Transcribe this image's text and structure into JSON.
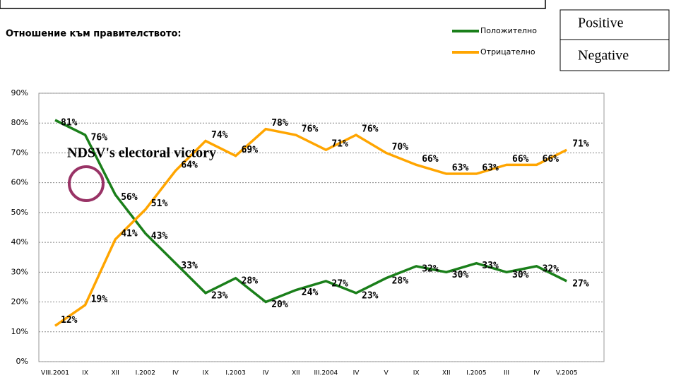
{
  "chart_data": {
    "type": "line",
    "title": "Отношение към правителството:",
    "annotation": "NDSV's electoral victory",
    "boxes": [
      "Positive",
      "Negative"
    ],
    "categories": [
      "VIII.2001",
      "IX",
      "XII",
      "I.2002",
      "IV",
      "IX",
      "I.2003",
      "IV",
      "XII",
      "III.2004",
      "IV",
      "V",
      "IX",
      "XII",
      "I.2005",
      "III",
      "IV",
      "V.2005"
    ],
    "series": [
      {
        "name": "Положително",
        "color": "#1a7f1a",
        "values": [
          81,
          76,
          56,
          43,
          33,
          23,
          28,
          20,
          24,
          27,
          23,
          28,
          32,
          30,
          33,
          30,
          32,
          27
        ],
        "value_labels": [
          "81%",
          "76%",
          "56%",
          "43%",
          "33%",
          "23%",
          "28%",
          "20%",
          "24%",
          "27%",
          "23%",
          "28%",
          "32%",
          "30%",
          "33%",
          "30%",
          "32%",
          "27%"
        ]
      },
      {
        "name": "Отрицателно",
        "color": "#ffa500",
        "values": [
          12,
          19,
          41,
          51,
          64,
          74,
          69,
          78,
          76,
          71,
          76,
          70,
          66,
          63,
          63,
          66,
          66,
          71
        ],
        "value_labels": [
          "12%",
          "19%",
          "41%",
          "51%",
          "64%",
          "74%",
          "69%",
          "78%",
          "76%",
          "71%",
          "76%",
          "70%",
          "66%",
          "63%",
          "63%",
          "66%",
          "66%",
          "71%"
        ]
      }
    ],
    "ylim": [
      0,
      90
    ],
    "yticks": [
      {
        "value": 0,
        "label": "0%"
      },
      {
        "value": 10,
        "label": "10%"
      },
      {
        "value": 20,
        "label": "20%"
      },
      {
        "value": 30,
        "label": "30%"
      },
      {
        "value": 40,
        "label": "40%"
      },
      {
        "value": 50,
        "label": "50%"
      },
      {
        "value": 60,
        "label": "60%"
      },
      {
        "value": 70,
        "label": "70%"
      },
      {
        "value": 80,
        "label": "80%"
      },
      {
        "value": 90,
        "label": "90%"
      }
    ],
    "grid": true
  }
}
